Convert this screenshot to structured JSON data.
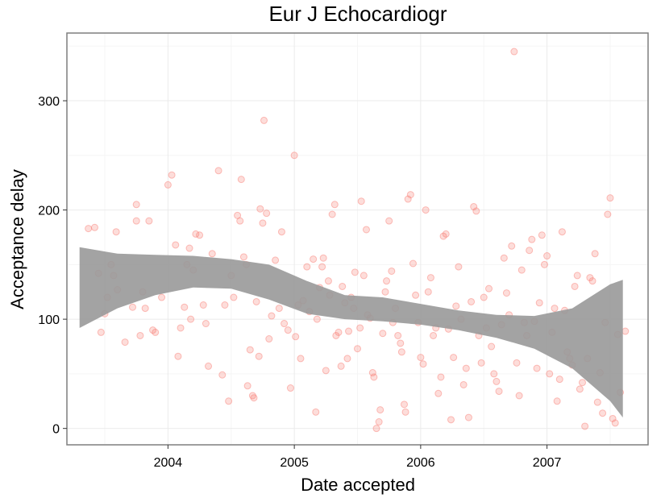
{
  "chart_data": {
    "type": "scatter",
    "title": "Eur J Echocardiogr",
    "xlabel": "Date accepted",
    "ylabel": "Acceptance delay",
    "xlim": [
      2003.2,
      2007.8
    ],
    "ylim": [
      -15,
      362
    ],
    "x_ticks": [
      2004,
      2005,
      2006,
      2007
    ],
    "x_tick_labels": [
      "2004",
      "2005",
      "2006",
      "2007"
    ],
    "y_ticks": [
      0,
      100,
      200,
      300
    ],
    "y_tick_labels": [
      "0",
      "100",
      "200",
      "300"
    ],
    "grid": true,
    "colors": {
      "points": "#f8766d",
      "band": "#999999",
      "frame": "#7f7f7f",
      "grid": "#ebebeb"
    },
    "points": [
      [
        2003.37,
        183
      ],
      [
        2003.42,
        184
      ],
      [
        2003.45,
        142
      ],
      [
        2003.47,
        88
      ],
      [
        2003.5,
        105
      ],
      [
        2003.52,
        120
      ],
      [
        2003.55,
        150
      ],
      [
        2003.57,
        140
      ],
      [
        2003.59,
        180
      ],
      [
        2003.6,
        127
      ],
      [
        2003.66,
        79
      ],
      [
        2003.72,
        111
      ],
      [
        2003.75,
        190
      ],
      [
        2003.75,
        205
      ],
      [
        2003.78,
        85
      ],
      [
        2003.8,
        125
      ],
      [
        2003.82,
        110
      ],
      [
        2003.85,
        190
      ],
      [
        2003.88,
        90
      ],
      [
        2003.9,
        88
      ],
      [
        2003.95,
        120
      ],
      [
        2004.0,
        223
      ],
      [
        2004.03,
        232
      ],
      [
        2004.06,
        168
      ],
      [
        2004.08,
        66
      ],
      [
        2004.1,
        92
      ],
      [
        2004.13,
        111
      ],
      [
        2004.15,
        150
      ],
      [
        2004.17,
        165
      ],
      [
        2004.18,
        100
      ],
      [
        2004.2,
        145
      ],
      [
        2004.22,
        178
      ],
      [
        2004.25,
        177
      ],
      [
        2004.28,
        113
      ],
      [
        2004.3,
        96
      ],
      [
        2004.32,
        57
      ],
      [
        2004.35,
        160
      ],
      [
        2004.4,
        236
      ],
      [
        2004.43,
        49
      ],
      [
        2004.45,
        113
      ],
      [
        2004.48,
        25
      ],
      [
        2004.5,
        140
      ],
      [
        2004.52,
        120
      ],
      [
        2004.55,
        195
      ],
      [
        2004.57,
        190
      ],
      [
        2004.58,
        228
      ],
      [
        2004.6,
        157
      ],
      [
        2004.62,
        150
      ],
      [
        2004.63,
        39
      ],
      [
        2004.65,
        72
      ],
      [
        2004.67,
        30
      ],
      [
        2004.68,
        28
      ],
      [
        2004.7,
        116
      ],
      [
        2004.72,
        66
      ],
      [
        2004.73,
        201
      ],
      [
        2004.75,
        188
      ],
      [
        2004.76,
        282
      ],
      [
        2004.78,
        197
      ],
      [
        2004.8,
        82
      ],
      [
        2004.82,
        103
      ],
      [
        2004.85,
        154
      ],
      [
        2004.88,
        110
      ],
      [
        2004.9,
        180
      ],
      [
        2004.92,
        96
      ],
      [
        2004.95,
        90
      ],
      [
        2004.97,
        37
      ],
      [
        2005.0,
        250
      ],
      [
        2005.01,
        84
      ],
      [
        2005.03,
        113
      ],
      [
        2005.05,
        64
      ],
      [
        2005.07,
        117
      ],
      [
        2005.1,
        148
      ],
      [
        2005.12,
        107
      ],
      [
        2005.15,
        155
      ],
      [
        2005.17,
        15
      ],
      [
        2005.18,
        100
      ],
      [
        2005.2,
        129
      ],
      [
        2005.22,
        148
      ],
      [
        2005.23,
        156
      ],
      [
        2005.25,
        53
      ],
      [
        2005.27,
        135
      ],
      [
        2005.28,
        122
      ],
      [
        2005.3,
        196
      ],
      [
        2005.32,
        205
      ],
      [
        2005.33,
        85
      ],
      [
        2005.35,
        88
      ],
      [
        2005.37,
        57
      ],
      [
        2005.38,
        130
      ],
      [
        2005.4,
        115
      ],
      [
        2005.42,
        64
      ],
      [
        2005.43,
        89
      ],
      [
        2005.45,
        120
      ],
      [
        2005.47,
        110
      ],
      [
        2005.48,
        143
      ],
      [
        2005.5,
        73
      ],
      [
        2005.52,
        92
      ],
      [
        2005.53,
        208
      ],
      [
        2005.55,
        140
      ],
      [
        2005.57,
        182
      ],
      [
        2005.58,
        104
      ],
      [
        2005.6,
        101
      ],
      [
        2005.62,
        51
      ],
      [
        2005.63,
        47
      ],
      [
        2005.65,
        0
      ],
      [
        2005.67,
        6
      ],
      [
        2005.68,
        17
      ],
      [
        2005.7,
        87
      ],
      [
        2005.72,
        125
      ],
      [
        2005.73,
        135
      ],
      [
        2005.75,
        190
      ],
      [
        2005.77,
        144
      ],
      [
        2005.78,
        97
      ],
      [
        2005.8,
        110
      ],
      [
        2005.82,
        85
      ],
      [
        2005.84,
        78
      ],
      [
        2005.85,
        70
      ],
      [
        2005.87,
        22
      ],
      [
        2005.88,
        15
      ],
      [
        2005.9,
        210
      ],
      [
        2005.92,
        214
      ],
      [
        2005.94,
        151
      ],
      [
        2005.96,
        122
      ],
      [
        2005.98,
        97
      ],
      [
        2006.0,
        65
      ],
      [
        2006.02,
        59
      ],
      [
        2006.04,
        200
      ],
      [
        2006.06,
        125
      ],
      [
        2006.08,
        138
      ],
      [
        2006.1,
        85
      ],
      [
        2006.12,
        92
      ],
      [
        2006.14,
        32
      ],
      [
        2006.16,
        47
      ],
      [
        2006.18,
        176
      ],
      [
        2006.2,
        178
      ],
      [
        2006.22,
        91
      ],
      [
        2006.24,
        8
      ],
      [
        2006.26,
        65
      ],
      [
        2006.28,
        112
      ],
      [
        2006.3,
        148
      ],
      [
        2006.32,
        100
      ],
      [
        2006.34,
        40
      ],
      [
        2006.36,
        55
      ],
      [
        2006.38,
        10
      ],
      [
        2006.4,
        116
      ],
      [
        2006.42,
        203
      ],
      [
        2006.44,
        199
      ],
      [
        2006.46,
        85
      ],
      [
        2006.48,
        60
      ],
      [
        2006.5,
        120
      ],
      [
        2006.52,
        92
      ],
      [
        2006.54,
        128
      ],
      [
        2006.56,
        75
      ],
      [
        2006.58,
        50
      ],
      [
        2006.6,
        43
      ],
      [
        2006.62,
        34
      ],
      [
        2006.64,
        95
      ],
      [
        2006.66,
        156
      ],
      [
        2006.68,
        124
      ],
      [
        2006.7,
        104
      ],
      [
        2006.72,
        167
      ],
      [
        2006.74,
        345
      ],
      [
        2006.76,
        60
      ],
      [
        2006.78,
        30
      ],
      [
        2006.8,
        145
      ],
      [
        2006.82,
        97
      ],
      [
        2006.84,
        85
      ],
      [
        2006.86,
        163
      ],
      [
        2006.88,
        173
      ],
      [
        2006.9,
        98
      ],
      [
        2006.92,
        55
      ],
      [
        2006.94,
        115
      ],
      [
        2006.96,
        177
      ],
      [
        2006.98,
        150
      ],
      [
        2007.0,
        158
      ],
      [
        2007.02,
        50
      ],
      [
        2007.04,
        88
      ],
      [
        2007.06,
        110
      ],
      [
        2007.08,
        25
      ],
      [
        2007.1,
        45
      ],
      [
        2007.12,
        180
      ],
      [
        2007.14,
        108
      ],
      [
        2007.16,
        70
      ],
      [
        2007.18,
        64
      ],
      [
        2007.2,
        58
      ],
      [
        2007.22,
        130
      ],
      [
        2007.24,
        140
      ],
      [
        2007.26,
        36
      ],
      [
        2007.28,
        42
      ],
      [
        2007.3,
        2
      ],
      [
        2007.32,
        64
      ],
      [
        2007.34,
        138
      ],
      [
        2007.36,
        135
      ],
      [
        2007.38,
        160
      ],
      [
        2007.4,
        24
      ],
      [
        2007.42,
        51
      ],
      [
        2007.44,
        14
      ],
      [
        2007.46,
        97
      ],
      [
        2007.48,
        196
      ],
      [
        2007.5,
        211
      ],
      [
        2007.52,
        9
      ],
      [
        2007.54,
        5
      ],
      [
        2007.56,
        86
      ],
      [
        2007.58,
        33
      ],
      [
        2007.62,
        89
      ]
    ],
    "band": {
      "x": [
        2003.3,
        2003.6,
        2003.9,
        2004.2,
        2004.5,
        2004.8,
        2005.1,
        2005.4,
        2005.7,
        2006.0,
        2006.3,
        2006.6,
        2006.9,
        2007.2,
        2007.5,
        2007.6
      ],
      "upper": [
        166,
        160,
        159,
        158,
        155,
        150,
        135,
        122,
        120,
        114,
        108,
        104,
        103,
        110,
        132,
        136
      ],
      "lower": [
        92,
        110,
        122,
        129,
        128,
        118,
        105,
        100,
        98,
        95,
        90,
        83,
        73,
        55,
        25,
        10
      ]
    }
  }
}
